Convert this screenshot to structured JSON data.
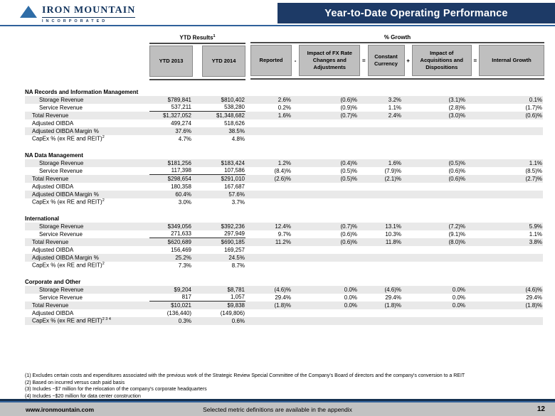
{
  "header": {
    "logo_name": "IRON MOUNTAIN",
    "logo_subtitle": "INCORPORATED",
    "title": "Year-to-Date Operating Performance"
  },
  "table": {
    "group_headers": {
      "ytd_results": "YTD Results",
      "ytd_results_sup": "1",
      "pct_growth": "% Growth"
    },
    "columns": [
      "YTD 2013",
      "YTD 2014",
      "Reported",
      "Impact of FX Rate Changes and Adjustments",
      "Constant Currency",
      "Impact of Acquisitions and Dispositions",
      "Internal Growth"
    ],
    "operators": [
      "-",
      "=",
      "+",
      "="
    ],
    "sections": [
      {
        "name": "NA Records and Information Management",
        "rows": [
          {
            "label": "Storage Revenue",
            "indent": 2,
            "values": [
              "$789,841",
              "$810,402",
              "2.6%",
              "(0.6)%",
              "3.2%",
              "(3.1)%",
              "0.1%"
            ]
          },
          {
            "label": "Service Revenue",
            "indent": 2,
            "underline": true,
            "values": [
              "537,211",
              "538,280",
              "0.2%",
              "(0.9)%",
              "1.1%",
              "(2.8)%",
              "(1.7)%"
            ]
          },
          {
            "label": "Total Revenue",
            "indent": 1,
            "values": [
              "$1,327,052",
              "$1,348,682",
              "1.6%",
              "(0.7)%",
              "2.4%",
              "(3.0)%",
              "(0.6)%"
            ]
          },
          {
            "label": "Adjusted OIBDA",
            "indent": 1,
            "values": [
              "499,274",
              "518,626"
            ]
          },
          {
            "label": "Adjusted OIBDA Margin %",
            "indent": 1,
            "values": [
              "37.6%",
              "38.5%"
            ]
          },
          {
            "label": "CapEx % (ex RE and REIT)",
            "sup": "2",
            "indent": 1,
            "values": [
              "4.7%",
              "4.8%"
            ]
          }
        ]
      },
      {
        "name": "NA Data Management",
        "rows": [
          {
            "label": "Storage Revenue",
            "indent": 2,
            "values": [
              "$181,256",
              "$183,424",
              "1.2%",
              "(0.4)%",
              "1.6%",
              "(0.5)%",
              "1.1%"
            ]
          },
          {
            "label": "Service Revenue",
            "indent": 2,
            "underline": true,
            "values": [
              "117,398",
              "107,586",
              "(8.4)%",
              "(0.5)%",
              "(7.9)%",
              "(0.6)%",
              "(8.5)%"
            ]
          },
          {
            "label": "Total Revenue",
            "indent": 1,
            "values": [
              "$298,654",
              "$291,010",
              "(2.6)%",
              "(0.5)%",
              "(2.1)%",
              "(0.6)%",
              "(2.7)%"
            ]
          },
          {
            "label": "Adjusted OIBDA",
            "indent": 1,
            "values": [
              "180,358",
              "167,687"
            ]
          },
          {
            "label": "Adjusted OIBDA Margin %",
            "indent": 1,
            "values": [
              "60.4%",
              "57.6%"
            ]
          },
          {
            "label": "CapEx % (ex RE and REIT)",
            "sup": "2",
            "indent": 1,
            "values": [
              "3.0%",
              "3.7%"
            ]
          }
        ]
      },
      {
        "name": "International",
        "rows": [
          {
            "label": "Storage Revenue",
            "indent": 2,
            "values": [
              "$349,056",
              "$392,236",
              "12.4%",
              "(0.7)%",
              "13.1%",
              "(7.2)%",
              "5.9%"
            ]
          },
          {
            "label": "Service Revenue",
            "indent": 2,
            "underline": true,
            "values": [
              "271,633",
              "297,949",
              "9.7%",
              "(0.6)%",
              "10.3%",
              "(9.1)%",
              "1.1%"
            ]
          },
          {
            "label": "Total Revenue",
            "indent": 1,
            "values": [
              "$620,689",
              "$690,185",
              "11.2%",
              "(0.6)%",
              "11.8%",
              "(8.0)%",
              "3.8%"
            ]
          },
          {
            "label": "Adjusted OIBDA",
            "indent": 1,
            "values": [
              "156,469",
              "169,257"
            ]
          },
          {
            "label": "Adjusted OIBDA Margin %",
            "indent": 1,
            "values": [
              "25.2%",
              "24.5%"
            ]
          },
          {
            "label": "CapEx % (ex RE and REIT)",
            "sup": "2",
            "indent": 1,
            "values": [
              "7.3%",
              "8.7%"
            ]
          }
        ]
      },
      {
        "name": "Corporate and Other",
        "rows": [
          {
            "label": "Storage Revenue",
            "indent": 2,
            "values": [
              "$9,204",
              "$8,781",
              "(4.6)%",
              "0.0%",
              "(4.6)%",
              "0.0%",
              "(4.6)%"
            ]
          },
          {
            "label": "Service Revenue",
            "indent": 2,
            "underline": true,
            "values": [
              "817",
              "1,057",
              "29.4%",
              "0.0%",
              "29.4%",
              "0.0%",
              "29.4%"
            ]
          },
          {
            "label": "Total Revenue",
            "indent": 1,
            "values": [
              "$10,021",
              "$9,838",
              "(1.8)%",
              "0.0%",
              "(1.8)%",
              "0.0%",
              "(1.8)%"
            ]
          },
          {
            "label": "Adjusted OIBDA",
            "indent": 1,
            "values": [
              "(136,440)",
              "(149,806)"
            ]
          },
          {
            "label": "CapEx % (ex RE and REIT)",
            "sup": "2 3 4",
            "indent": 1,
            "values": [
              "0.3%",
              "0.6%"
            ]
          }
        ]
      }
    ]
  },
  "footnotes": [
    "(1) Excludes certain costs and expenditures associated with the previous work of the Strategic Review Special Committee of the Company's Board of directors and the company's conversion to a REIT",
    "(2) Based on incurred versus cash paid basis",
    "(3) Includes ~$7 million for the relocation of the company's corporate headquarters",
    "(4) Includes ~$20 million for data center construction"
  ],
  "footer": {
    "url": "www.ironmountain.com",
    "center_text": "Selected metric definitions are available in the appendix",
    "page_number": "12"
  },
  "colors": {
    "title_bar_navy": "#1d3a66",
    "rule_blue": "#2f619b",
    "header_box_gray": "#bfbfbf",
    "row_stripe_gray": "#e9e9e9",
    "footer_band_gray": "#c2c2c2",
    "footer_line_navy": "#15304f",
    "logo_blue": "#2f6da7"
  }
}
